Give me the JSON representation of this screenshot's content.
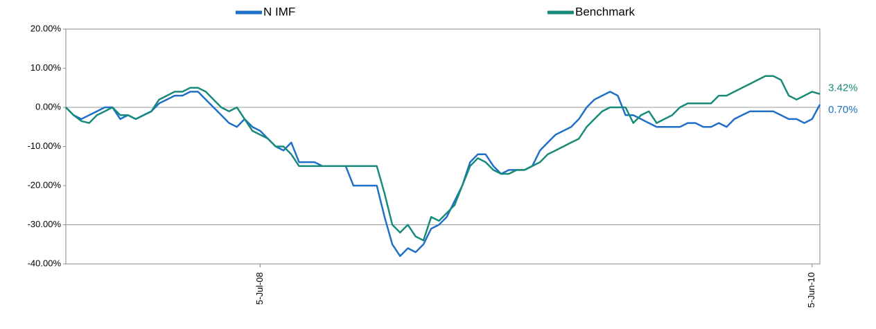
{
  "chart_data": {
    "type": "line",
    "categories": [
      null,
      null,
      null,
      null,
      null,
      null,
      null,
      null,
      null,
      null,
      null,
      null,
      null,
      null,
      null,
      null,
      null,
      null,
      null,
      null,
      null,
      null,
      null,
      null,
      null,
      "5-Jul-08",
      null,
      null,
      null,
      null,
      null,
      null,
      null,
      null,
      null,
      null,
      null,
      null,
      null,
      null,
      null,
      null,
      null,
      null,
      null,
      null,
      null,
      null,
      null,
      null,
      null,
      null,
      null,
      null,
      null,
      null,
      null,
      null,
      null,
      null,
      null,
      null,
      null,
      null,
      null,
      null,
      null,
      null,
      null,
      null,
      null,
      null,
      null,
      null,
      null,
      null,
      null,
      null,
      null,
      null,
      null,
      null,
      null,
      null,
      null,
      null,
      null,
      null,
      null,
      null,
      null,
      null,
      null,
      null,
      null,
      null,
      "5-Jun-10",
      null
    ],
    "series": [
      {
        "name": "N IMF",
        "color": "#1f6fc9",
        "values": [
          0,
          -2,
          -3,
          -2,
          -1,
          0,
          0,
          -3,
          -2,
          -3,
          -2,
          -1,
          1,
          2,
          3,
          3,
          4,
          4,
          2,
          0,
          -2,
          -4,
          -5,
          -3,
          -5,
          -6,
          -8,
          -10,
          -11,
          -9,
          -14,
          -14,
          -14,
          -15,
          -15,
          -15,
          -15,
          -20,
          -20,
          -20,
          -20,
          -28,
          -35,
          -38,
          -36,
          -37,
          -35,
          -31,
          -30,
          -28,
          -24,
          -20,
          -14,
          -12,
          -12,
          -15,
          -17,
          -16,
          -16,
          -16,
          -15,
          -11,
          -9,
          -7,
          -6,
          -5,
          -3,
          0,
          2,
          3,
          4,
          3,
          -2,
          -2,
          -3,
          -4,
          -5,
          -5,
          -5,
          -5,
          -4,
          -4,
          -5,
          -5,
          -4,
          -5,
          -3,
          -2,
          -1,
          -1,
          -1,
          -1,
          -2,
          -3,
          -3,
          -4,
          -3,
          0.7
        ],
        "value_labels": [
          null,
          null,
          null,
          null,
          null,
          null,
          null,
          null,
          null,
          null,
          null,
          null,
          null,
          null,
          null,
          null,
          null,
          null,
          null,
          null,
          null,
          null,
          null,
          null,
          null,
          null,
          null,
          null,
          null,
          null,
          null,
          null,
          null,
          null,
          null,
          null,
          null,
          null,
          null,
          null,
          null,
          null,
          null,
          null,
          null,
          null,
          null,
          null,
          null,
          null,
          null,
          null,
          null,
          null,
          null,
          null,
          null,
          null,
          null,
          null,
          null,
          null,
          null,
          null,
          null,
          null,
          null,
          null,
          null,
          null,
          null,
          null,
          null,
          null,
          null,
          null,
          null,
          null,
          null,
          null,
          null,
          null,
          null,
          null,
          null,
          null,
          null,
          null,
          null,
          null,
          null,
          null,
          null,
          null,
          null,
          null,
          null,
          "0.70%"
        ]
      },
      {
        "name": "Benchmark",
        "color": "#178a7a",
        "values": [
          0,
          -2,
          -3.5,
          -4,
          -2,
          -1,
          0,
          -2,
          -2,
          -3,
          -2,
          -1,
          2,
          3,
          4,
          4,
          5,
          5,
          4,
          2,
          0,
          -1,
          0,
          -3,
          -6,
          -7,
          -8,
          -10,
          -10,
          -12,
          -15,
          -15,
          -15,
          -15,
          -15,
          -15,
          -15,
          -15,
          -15,
          -15,
          -15,
          -22,
          -30,
          -32,
          -30,
          -33,
          -34,
          -28,
          -29,
          -27,
          -25,
          -20,
          -15,
          -13,
          -14,
          -16,
          -17,
          -17,
          -16,
          -16,
          -15,
          -14,
          -12,
          -11,
          -10,
          -9,
          -8,
          -5,
          -3,
          -1,
          0,
          0,
          0,
          -4,
          -2,
          -1,
          -4,
          -3,
          -2,
          0,
          1,
          1,
          1,
          1,
          3,
          3,
          4,
          5,
          6,
          7,
          8,
          8,
          7,
          3,
          2,
          3,
          4,
          3.42
        ],
        "value_labels": [
          null,
          null,
          null,
          null,
          null,
          null,
          null,
          null,
          null,
          null,
          null,
          null,
          null,
          null,
          null,
          null,
          null,
          null,
          null,
          null,
          null,
          null,
          null,
          null,
          null,
          null,
          null,
          null,
          null,
          null,
          null,
          null,
          null,
          null,
          null,
          null,
          null,
          null,
          null,
          null,
          null,
          null,
          null,
          null,
          null,
          null,
          null,
          null,
          null,
          null,
          null,
          null,
          null,
          null,
          null,
          null,
          null,
          null,
          null,
          null,
          null,
          null,
          null,
          null,
          null,
          null,
          null,
          null,
          null,
          null,
          null,
          null,
          null,
          null,
          null,
          null,
          null,
          null,
          null,
          null,
          null,
          null,
          null,
          null,
          null,
          null,
          null,
          null,
          null,
          null,
          null,
          null,
          null,
          null,
          null,
          null,
          null,
          "3.42%"
        ]
      }
    ],
    "ylim": [
      -40,
      20
    ],
    "yticks": [
      {
        "value": -40,
        "label": "-40.00%"
      },
      {
        "value": -30,
        "label": "-30.00%"
      },
      {
        "value": -20,
        "label": "-20.00%"
      },
      {
        "value": -10,
        "label": "-10.00%"
      },
      {
        "value": 0,
        "label": "0.00%"
      },
      {
        "value": 10,
        "label": "10.00%"
      },
      {
        "value": 20,
        "label": "20.00%"
      }
    ],
    "grid_lines": [
      0,
      -30
    ],
    "legend": "top"
  }
}
